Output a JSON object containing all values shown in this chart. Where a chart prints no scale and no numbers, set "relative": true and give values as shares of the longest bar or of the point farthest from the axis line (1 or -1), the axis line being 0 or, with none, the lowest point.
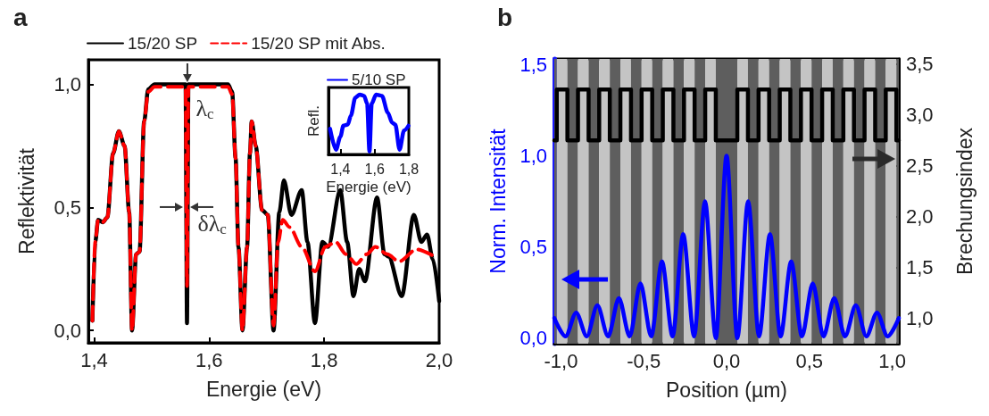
{
  "chart_data": [
    {
      "type": "line",
      "title": "a",
      "xlabel": "Energie (eV)",
      "ylabel": "Reflektivität",
      "legend": "top",
      "xlim": [
        1.39,
        2.0
      ],
      "xticks": [
        {
          "value": 1.4,
          "label": "1,4"
        },
        {
          "value": 1.6,
          "label": "1,6"
        },
        {
          "value": 1.8,
          "label": "1,8"
        },
        {
          "value": 2.0,
          "label": "2,0"
        }
      ],
      "ylim": [
        -0.05,
        1.1
      ],
      "yticks": [
        {
          "value": 0,
          "label": "0,0"
        },
        {
          "value": 0.5,
          "label": "0,5"
        },
        {
          "value": 1.0,
          "label": "1,0"
        }
      ],
      "annotations": [
        {
          "text": "λ$_{c}$",
          "x": 1.5615,
          "y": 1.0
        },
        {
          "text": "δλ$_{c}$",
          "x": 1.5615,
          "y": 0.5
        }
      ],
      "series": [
        {
          "name": "15/20 SP",
          "color": "#000000",
          "line_style": "solid",
          "x": [
            1.397,
            1.402,
            1.407,
            1.415,
            1.423,
            1.433,
            1.443,
            1.453,
            1.461,
            1.466,
            1.473,
            1.479,
            1.487,
            1.494,
            1.505,
            1.559,
            1.5615,
            1.564,
            1.633,
            1.64,
            1.646,
            1.651,
            1.658,
            1.666,
            1.671,
            1.674,
            1.681,
            1.692,
            1.702,
            1.712,
            1.722,
            1.73,
            1.743,
            1.761,
            1.771,
            1.784,
            1.797,
            1.807,
            1.828,
            1.84,
            1.851,
            1.861,
            1.871,
            1.892,
            1.905,
            1.912,
            1.935,
            1.956,
            1.969,
            1.979,
            1.989,
            2.0
          ],
          "values": [
            0.04,
            0.36,
            0.45,
            0.44,
            0.46,
            0.72,
            0.81,
            0.75,
            0.48,
            0,
            0.31,
            0.32,
            0.85,
            0.98,
            1.0,
            1.0,
            0.03,
            1.0,
            1.0,
            0.97,
            0.7,
            0.34,
            0,
            0.34,
            0.72,
            0.85,
            0.75,
            0.49,
            0.47,
            0,
            0.48,
            0.61,
            0.47,
            0.57,
            0.36,
            0.03,
            0.36,
            0.34,
            0.57,
            0.36,
            0.14,
            0.25,
            0.2,
            0.54,
            0.31,
            0.3,
            0.14,
            0.47,
            0.36,
            0.39,
            0.29,
            0.12
          ]
        },
        {
          "name": "15/20 SP mit Abs.",
          "color": "#ff0000",
          "line_style": "dashed",
          "x": [
            1.397,
            1.402,
            1.407,
            1.415,
            1.423,
            1.433,
            1.443,
            1.453,
            1.461,
            1.466,
            1.473,
            1.479,
            1.487,
            1.494,
            1.505,
            1.559,
            1.5615,
            1.564,
            1.633,
            1.64,
            1.646,
            1.651,
            1.658,
            1.666,
            1.671,
            1.674,
            1.681,
            1.692,
            1.702,
            1.712,
            1.72,
            1.728,
            1.74,
            1.761,
            1.784,
            1.802,
            1.82,
            1.838,
            1.856,
            1.874,
            1.889,
            1.91,
            1.93,
            1.961,
            1.992
          ],
          "values": [
            0.04,
            0.36,
            0.45,
            0.44,
            0.46,
            0.72,
            0.81,
            0.75,
            0.48,
            0,
            0.31,
            0.32,
            0.85,
            0.97,
            0.99,
            0.99,
            0.18,
            0.99,
            0.99,
            0.96,
            0.7,
            0.34,
            0,
            0.34,
            0.72,
            0.85,
            0.75,
            0.49,
            0.47,
            0.02,
            0.36,
            0.45,
            0.42,
            0.34,
            0.24,
            0.34,
            0.36,
            0.31,
            0.27,
            0.31,
            0.34,
            0.31,
            0.28,
            0.33,
            0.3
          ]
        }
      ]
    },
    {
      "type": "line",
      "xlabel": "Energie (eV)",
      "ylabel": "Refl.",
      "legend": "top",
      "relative": true,
      "xlim": [
        1.33,
        1.8
      ],
      "xticks": [
        {
          "value": 1.4,
          "label": "1,4"
        },
        {
          "value": 1.6,
          "label": "1,6"
        },
        {
          "value": 1.8,
          "label": "1,8"
        }
      ],
      "series": [
        {
          "name": "5/10 SP",
          "color": "#0000ff",
          "x": [
            1.339,
            1.374,
            1.4,
            1.417,
            1.443,
            1.461,
            1.487,
            1.513,
            1.539,
            1.556,
            1.57,
            1.583,
            1.608,
            1.643,
            1.677,
            1.703,
            1.721,
            1.746,
            1.772,
            1.798
          ],
          "values": [
            0.43,
            0.08,
            0.3,
            0.48,
            0.5,
            0.65,
            0.95,
            1,
            0.98,
            0.85,
            0.05,
            0.85,
            1,
            0.98,
            0.7,
            0.53,
            0.5,
            0.08,
            0.4,
            0.48
          ]
        }
      ]
    },
    {
      "type": "line",
      "title": "b",
      "xlabel": "Position (µm)",
      "ylabel": "Norm. Intensität",
      "y2label": "Brechungsindex",
      "xlim": [
        -1.04,
        1.04
      ],
      "xticks": [
        {
          "value": -1.0,
          "label": "-1,0"
        },
        {
          "value": -0.5,
          "label": "-0,5"
        },
        {
          "value": 0,
          "label": "0,0"
        },
        {
          "value": 0.5,
          "label": "0,5"
        },
        {
          "value": 1.0,
          "label": "1,0"
        }
      ],
      "ylim": [
        -0.03,
        1.53
      ],
      "yticks": [
        {
          "value": 0,
          "label": "0,0"
        },
        {
          "value": 0.5,
          "label": "0,5"
        },
        {
          "value": 1.0,
          "label": "1,0"
        },
        {
          "value": 1.5,
          "label": "1,5"
        }
      ],
      "y2lim": [
        0.75,
        3.55
      ],
      "y2ticks": [
        {
          "value": 1.0,
          "label": "1,0"
        },
        {
          "value": 1.5,
          "label": "1,5"
        },
        {
          "value": 2.0,
          "label": "2,0"
        },
        {
          "value": 2.5,
          "label": "2,5"
        },
        {
          "value": 3.0,
          "label": "3,0"
        },
        {
          "value": 3.5,
          "label": "3,5"
        }
      ],
      "bands": [
        {
          "axis": "x",
          "from": -1.04,
          "to": -1.025,
          "color": "#5e5e5e"
        },
        {
          "axis": "x",
          "from": -1.025,
          "to": -0.961,
          "color": "#c4c4c4"
        },
        {
          "axis": "x",
          "from": -0.961,
          "to": -0.897,
          "color": "#5e5e5e"
        },
        {
          "axis": "x",
          "from": -0.897,
          "to": -0.833,
          "color": "#c4c4c4"
        },
        {
          "axis": "x",
          "from": -0.833,
          "to": -0.769,
          "color": "#5e5e5e"
        },
        {
          "axis": "x",
          "from": -0.769,
          "to": -0.705,
          "color": "#c4c4c4"
        },
        {
          "axis": "x",
          "from": -0.705,
          "to": -0.641,
          "color": "#5e5e5e"
        },
        {
          "axis": "x",
          "from": -0.641,
          "to": -0.577,
          "color": "#c4c4c4"
        },
        {
          "axis": "x",
          "from": -0.577,
          "to": -0.513,
          "color": "#5e5e5e"
        },
        {
          "axis": "x",
          "from": -0.513,
          "to": -0.449,
          "color": "#c4c4c4"
        },
        {
          "axis": "x",
          "from": -0.449,
          "to": -0.385,
          "color": "#5e5e5e"
        },
        {
          "axis": "x",
          "from": -0.385,
          "to": -0.321,
          "color": "#c4c4c4"
        },
        {
          "axis": "x",
          "from": -0.321,
          "to": -0.257,
          "color": "#5e5e5e"
        },
        {
          "axis": "x",
          "from": -0.257,
          "to": -0.193,
          "color": "#c4c4c4"
        },
        {
          "axis": "x",
          "from": -0.193,
          "to": -0.129,
          "color": "#5e5e5e"
        },
        {
          "axis": "x",
          "from": -0.129,
          "to": -0.065,
          "color": "#c4c4c4"
        },
        {
          "axis": "x",
          "from": -0.065,
          "to": 0.065,
          "color": "#5e5e5e"
        },
        {
          "axis": "x",
          "from": 0.065,
          "to": 0.129,
          "color": "#c4c4c4"
        },
        {
          "axis": "x",
          "from": 0.129,
          "to": 0.193,
          "color": "#5e5e5e"
        },
        {
          "axis": "x",
          "from": 0.193,
          "to": 0.257,
          "color": "#c4c4c4"
        },
        {
          "axis": "x",
          "from": 0.257,
          "to": 0.321,
          "color": "#5e5e5e"
        },
        {
          "axis": "x",
          "from": 0.321,
          "to": 0.385,
          "color": "#c4c4c4"
        },
        {
          "axis": "x",
          "from": 0.385,
          "to": 0.449,
          "color": "#5e5e5e"
        },
        {
          "axis": "x",
          "from": 0.449,
          "to": 0.513,
          "color": "#c4c4c4"
        },
        {
          "axis": "x",
          "from": 0.513,
          "to": 0.577,
          "color": "#5e5e5e"
        },
        {
          "axis": "x",
          "from": 0.577,
          "to": 0.641,
          "color": "#c4c4c4"
        },
        {
          "axis": "x",
          "from": 0.641,
          "to": 0.705,
          "color": "#5e5e5e"
        },
        {
          "axis": "x",
          "from": 0.705,
          "to": 0.769,
          "color": "#c4c4c4"
        },
        {
          "axis": "x",
          "from": 0.769,
          "to": 0.833,
          "color": "#5e5e5e"
        },
        {
          "axis": "x",
          "from": 0.833,
          "to": 0.897,
          "color": "#c4c4c4"
        },
        {
          "axis": "x",
          "from": 0.897,
          "to": 0.961,
          "color": "#5e5e5e"
        },
        {
          "axis": "x",
          "from": 0.961,
          "to": 1.025,
          "color": "#c4c4c4"
        },
        {
          "axis": "x",
          "from": 1.025,
          "to": 1.04,
          "color": "#5e5e5e"
        }
      ],
      "series": [
        {
          "type": "step",
          "axis": "y2",
          "color": "#000000",
          "x": [
            -1.04,
            -1.025,
            -0.961,
            -0.897,
            -0.833,
            -0.769,
            -0.705,
            -0.641,
            -0.577,
            -0.513,
            -0.449,
            -0.385,
            -0.321,
            -0.257,
            -0.193,
            -0.129,
            -0.065,
            0.065,
            0.129,
            0.193,
            0.257,
            0.321,
            0.385,
            0.449,
            0.513,
            0.577,
            0.641,
            0.705,
            0.769,
            0.833,
            0.897,
            0.961,
            1.025,
            1.04
          ],
          "values": [
            2.75,
            3.25,
            2.75,
            3.25,
            2.75,
            3.25,
            2.75,
            3.25,
            2.75,
            3.25,
            2.75,
            3.25,
            2.75,
            3.25,
            2.75,
            3.25,
            2.75,
            3.25,
            2.75,
            3.25,
            2.75,
            3.25,
            2.75,
            3.25,
            2.75,
            3.25,
            2.75,
            3.25,
            2.75,
            3.25,
            2.75,
            3.25,
            2.75,
            2.75
          ]
        },
        {
          "type": "line",
          "color": "#0000ff",
          "x": [
            -1.04,
            -0.972,
            -0.908,
            -0.844,
            -0.78,
            -0.715,
            -0.65,
            -0.585,
            -0.52,
            -0.455,
            -0.39,
            -0.326,
            -0.262,
            -0.196,
            -0.13,
            -0.065,
            0,
            0.065,
            0.13,
            0.196,
            0.262,
            0.326,
            0.39,
            0.455,
            0.52,
            0.585,
            0.65,
            0.715,
            0.78,
            0.844,
            0.908,
            0.972,
            1.04
          ],
          "values": [
            0.11,
            0.01,
            0.14,
            0.01,
            0.18,
            0.01,
            0.22,
            0.01,
            0.3,
            0.01,
            0.42,
            0.01,
            0.57,
            0.01,
            0.75,
            0,
            1.0,
            0,
            0.75,
            0.01,
            0.57,
            0.01,
            0.42,
            0.01,
            0.3,
            0.01,
            0.22,
            0.01,
            0.18,
            0.01,
            0.14,
            0.01,
            0.11
          ]
        }
      ]
    }
  ]
}
